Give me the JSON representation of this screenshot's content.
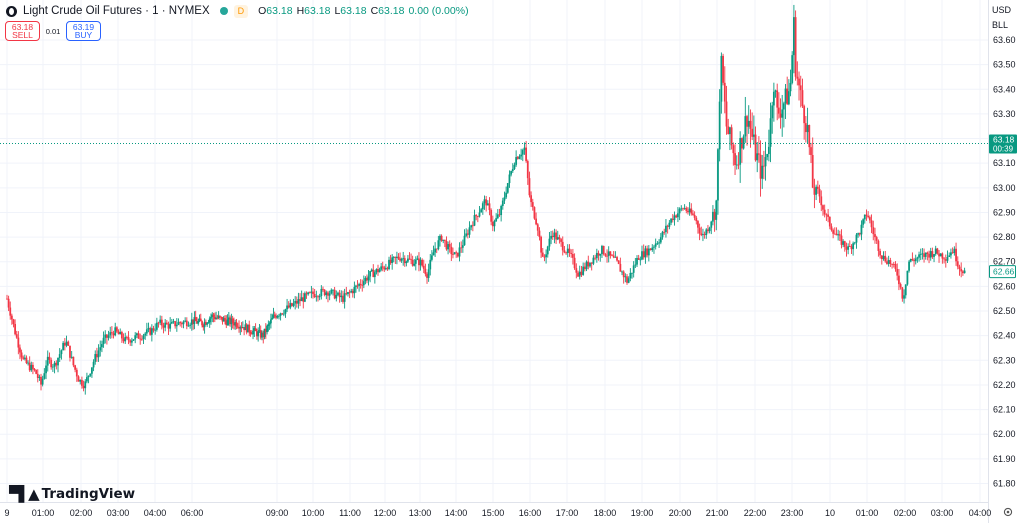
{
  "header": {
    "title": "Light Crude Oil Futures · 1 · NYMEX",
    "market_status": "D",
    "ohlc": [
      {
        "key": "O",
        "value": "63.18"
      },
      {
        "key": "H",
        "value": "63.18"
      },
      {
        "key": "L",
        "value": "63.18"
      },
      {
        "key": "C",
        "value": "63.18"
      },
      {
        "key": "",
        "value": "0.00 (0.00%)"
      }
    ]
  },
  "trade": {
    "sell_price": "63.18",
    "sell_label": "SELL",
    "spread": "0.01",
    "buy_price": "63.19",
    "buy_label": "BUY"
  },
  "price_axis": {
    "currency": "USD",
    "unit": "BLL"
  },
  "last_price": {
    "price": "63.18",
    "countdown": "00:39"
  },
  "second_marker": {
    "price": "62.66"
  },
  "logo": {
    "text": "TradingView"
  },
  "icons": {
    "symbol": "commodity-icon",
    "settings": "gear-icon",
    "logo": "tradingview-logo-icon"
  },
  "colors": {
    "up": "#089981",
    "down": "#f23645",
    "last_price": "#089981"
  },
  "chart_data": {
    "type": "candlestick",
    "title": "Light Crude Oil Futures · 1 · NYMEX",
    "ylim": [
      61.75,
      63.67
    ],
    "y_ticks": [
      61.8,
      61.9,
      62.0,
      62.1,
      62.2,
      62.3,
      62.4,
      62.5,
      62.6,
      62.7,
      62.8,
      62.9,
      63.0,
      63.1,
      63.2,
      63.3,
      63.4,
      63.5,
      63.6
    ],
    "x_ticks": [
      {
        "label": "9",
        "t": 0.0
      },
      {
        "label": "01:00",
        "t": 1.0
      },
      {
        "label": "02:00",
        "t": 2.0
      },
      {
        "label": "03:00",
        "t": 3.0
      },
      {
        "label": "04:00",
        "t": 4.0
      },
      {
        "label": "06:00",
        "t": 5.0
      },
      {
        "label": "09:00",
        "t": 8.0
      },
      {
        "label": "10:00",
        "t": 9.0
      },
      {
        "label": "11:00",
        "t": 10.0
      },
      {
        "label": "12:00",
        "t": 11.0
      },
      {
        "label": "13:00",
        "t": 12.0
      },
      {
        "label": "14:00",
        "t": 13.0
      },
      {
        "label": "15:00",
        "t": 14.0
      },
      {
        "label": "16:00",
        "t": 15.0
      },
      {
        "label": "17:00",
        "t": 16.0
      },
      {
        "label": "18:00",
        "t": 17.0
      },
      {
        "label": "19:00",
        "t": 18.0
      },
      {
        "label": "20:00",
        "t": 19.0
      },
      {
        "label": "21:00",
        "t": 20.0
      },
      {
        "label": "22:00",
        "t": 21.0
      },
      {
        "label": "23:00",
        "t": 22.0
      },
      {
        "label": "10",
        "t": 23.0
      },
      {
        "label": "01:00",
        "t": 24.0
      },
      {
        "label": "02:00",
        "t": 25.0
      },
      {
        "label": "03:00",
        "t": 26.0
      },
      {
        "label": "04:00",
        "t": 27.0
      }
    ],
    "price_path": [
      [
        0.0,
        62.55
      ],
      [
        0.25,
        62.4
      ],
      [
        0.45,
        62.3
      ],
      [
        0.8,
        62.25
      ],
      [
        0.95,
        62.2
      ],
      [
        1.1,
        62.3
      ],
      [
        1.3,
        62.28
      ],
      [
        1.6,
        62.38
      ],
      [
        1.8,
        62.28
      ],
      [
        1.95,
        62.22
      ],
      [
        2.1,
        62.2
      ],
      [
        2.35,
        62.3
      ],
      [
        2.6,
        62.38
      ],
      [
        2.9,
        62.42
      ],
      [
        3.2,
        62.38
      ],
      [
        3.6,
        62.4
      ],
      [
        3.9,
        62.42
      ],
      [
        4.1,
        62.45
      ],
      [
        4.4,
        62.44
      ],
      [
        4.6,
        62.45
      ],
      [
        5.0,
        62.46
      ],
      [
        5.4,
        62.45
      ],
      [
        5.7,
        62.48
      ],
      [
        6.2,
        62.46
      ],
      [
        6.6,
        62.45
      ],
      [
        7.1,
        62.42
      ],
      [
        7.5,
        62.4
      ],
      [
        7.9,
        62.48
      ],
      [
        8.4,
        62.52
      ],
      [
        8.7,
        62.55
      ],
      [
        9.0,
        62.57
      ],
      [
        9.4,
        62.58
      ],
      [
        9.8,
        62.55
      ],
      [
        10.2,
        62.6
      ],
      [
        10.6,
        62.65
      ],
      [
        11.0,
        62.68
      ],
      [
        11.4,
        62.72
      ],
      [
        11.8,
        62.7
      ],
      [
        12.0,
        62.7
      ],
      [
        12.2,
        62.65
      ],
      [
        12.4,
        62.75
      ],
      [
        12.6,
        62.8
      ],
      [
        12.8,
        62.75
      ],
      [
        13.0,
        62.72
      ],
      [
        13.2,
        62.78
      ],
      [
        13.4,
        62.85
      ],
      [
        13.6,
        62.9
      ],
      [
        13.8,
        62.95
      ],
      [
        14.0,
        62.85
      ],
      [
        14.2,
        62.9
      ],
      [
        14.4,
        63.02
      ],
      [
        14.6,
        63.12
      ],
      [
        14.85,
        63.16
      ],
      [
        15.0,
        62.95
      ],
      [
        15.2,
        62.85
      ],
      [
        15.35,
        62.7
      ],
      [
        15.6,
        62.82
      ],
      [
        15.8,
        62.78
      ],
      [
        16.1,
        62.72
      ],
      [
        16.3,
        62.65
      ],
      [
        16.6,
        62.7
      ],
      [
        16.9,
        62.75
      ],
      [
        17.3,
        62.7
      ],
      [
        17.6,
        62.62
      ],
      [
        17.9,
        62.72
      ],
      [
        18.2,
        62.75
      ],
      [
        18.5,
        62.8
      ],
      [
        18.8,
        62.88
      ],
      [
        19.1,
        62.92
      ],
      [
        19.4,
        62.88
      ],
      [
        19.6,
        62.8
      ],
      [
        19.8,
        62.85
      ],
      [
        20.0,
        62.95
      ],
      [
        20.05,
        63.3
      ],
      [
        20.1,
        63.52
      ],
      [
        20.25,
        63.25
      ],
      [
        20.5,
        63.1
      ],
      [
        20.8,
        63.3
      ],
      [
        21.0,
        63.15
      ],
      [
        21.2,
        63.05
      ],
      [
        21.4,
        63.22
      ],
      [
        21.5,
        63.45
      ],
      [
        21.6,
        63.3
      ],
      [
        21.8,
        63.35
      ],
      [
        21.95,
        63.4
      ],
      [
        22.05,
        63.66
      ],
      [
        22.1,
        63.48
      ],
      [
        22.25,
        63.35
      ],
      [
        22.4,
        63.25
      ],
      [
        22.55,
        63.0
      ],
      [
        22.7,
        62.98
      ],
      [
        22.85,
        62.9
      ],
      [
        23.0,
        62.85
      ],
      [
        23.2,
        62.8
      ],
      [
        23.5,
        62.75
      ],
      [
        23.8,
        62.82
      ],
      [
        24.0,
        62.9
      ],
      [
        24.2,
        62.8
      ],
      [
        24.4,
        62.72
      ],
      [
        24.6,
        62.7
      ],
      [
        24.8,
        62.65
      ],
      [
        24.95,
        62.55
      ],
      [
        25.1,
        62.7
      ],
      [
        25.4,
        62.72
      ],
      [
        25.8,
        62.74
      ],
      [
        26.1,
        62.72
      ],
      [
        26.3,
        62.75
      ],
      [
        26.45,
        62.68
      ],
      [
        26.6,
        62.66
      ]
    ]
  }
}
